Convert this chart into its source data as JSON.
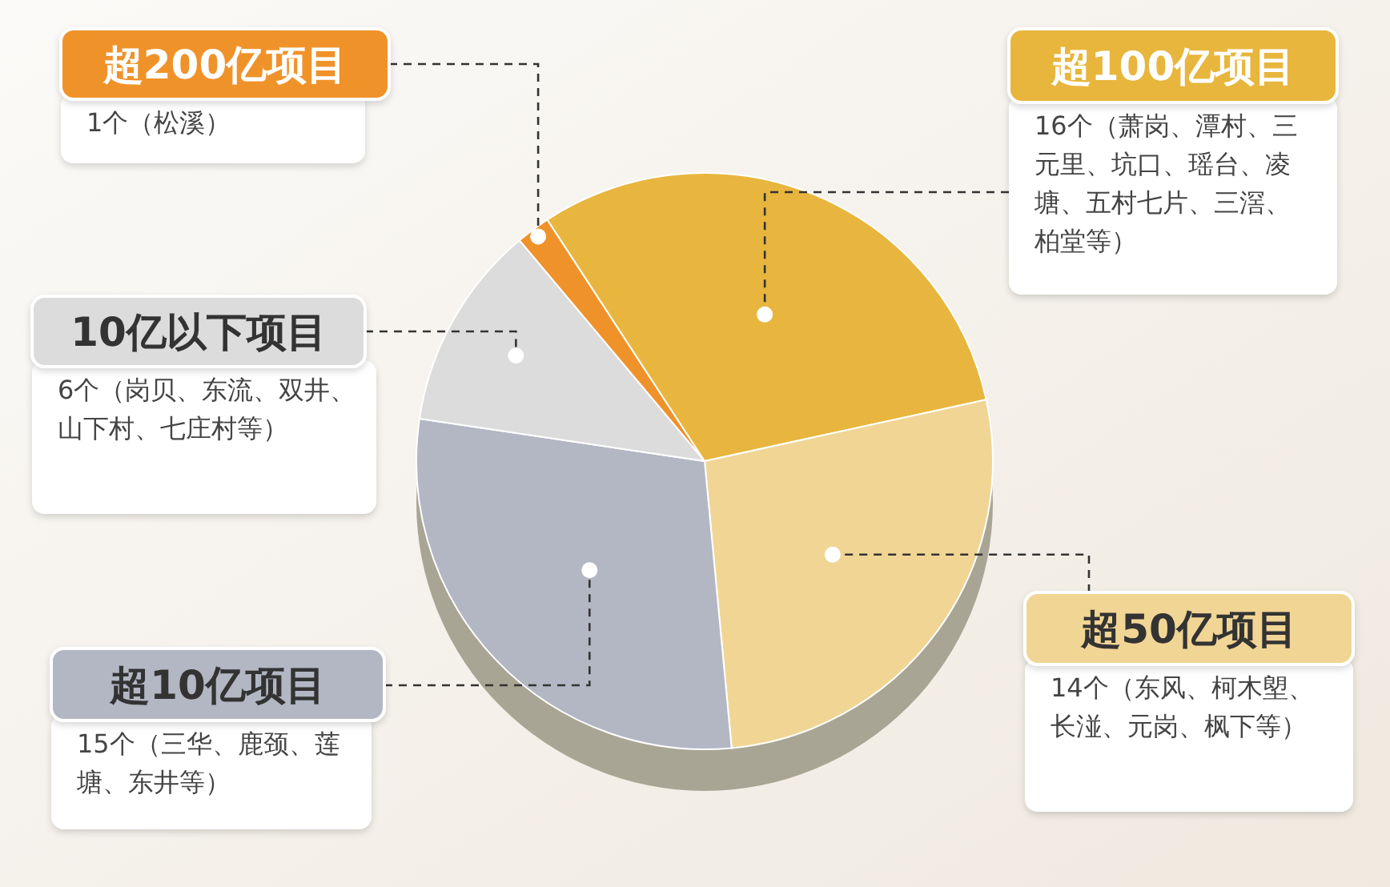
{
  "chart_data": {
    "type": "pie",
    "categories": [
      "超200亿项目",
      "超100亿项目",
      "超50亿项目",
      "超10亿项目",
      "10亿以下项目"
    ],
    "values": [
      1,
      16,
      14,
      15,
      6
    ],
    "colors": [
      "#f0922a",
      "#e8b63e",
      "#f1d595",
      "#b3b7c4",
      "#dcdcdc"
    ],
    "value_labels": [
      "1个（松溪）",
      "16个（萧岗、潭村、三元里、坑口、瑶台、凌塘、五村七片、三滘、柏堂等）",
      "14个（东风、柯木塱、长湴、元岗、枫下等）",
      "15个（三华、鹿颈、莲塘、东井等）",
      "6个（岗贝、东流、双井、山下村、七庄村等）"
    ]
  }
}
